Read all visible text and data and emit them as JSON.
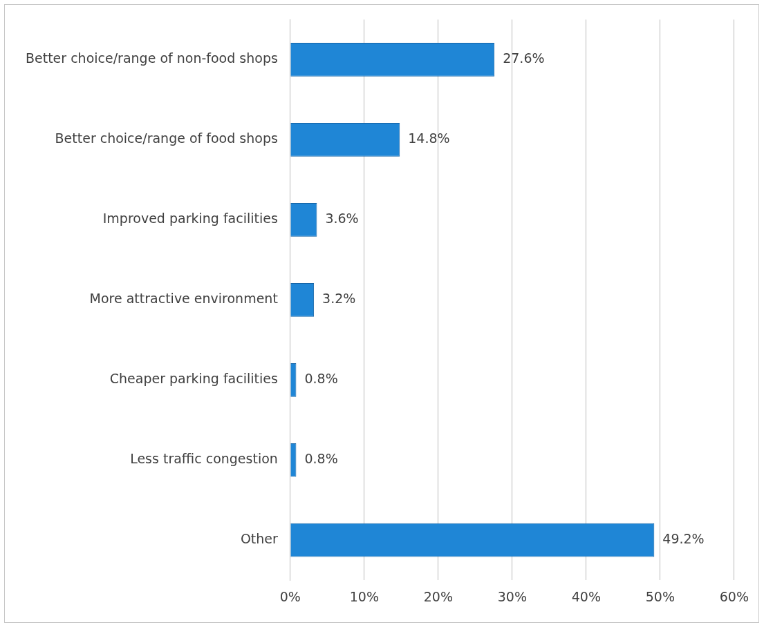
{
  "chart_data": {
    "type": "bar",
    "orientation": "horizontal",
    "categories": [
      "Better choice/range of non-food shops",
      "Better choice/range of food shops",
      "Improved parking facilities",
      "More attractive environment",
      "Cheaper parking facilities",
      "Less traffic congestion",
      "Other"
    ],
    "values": [
      27.6,
      14.8,
      3.6,
      3.2,
      0.8,
      0.8,
      49.2
    ],
    "color": "#1f86d6",
    "value_labels": [
      "27.6%",
      "14.8%",
      "3.6%",
      "3.2%",
      "0.8%",
      "0.8%",
      "49.2%"
    ],
    "xlim": [
      0,
      60
    ],
    "xticks": [
      {
        "value": 0,
        "label": "0%"
      },
      {
        "value": 10,
        "label": "10%"
      },
      {
        "value": 20,
        "label": "20%"
      },
      {
        "value": 30,
        "label": "30%"
      },
      {
        "value": 40,
        "label": "40%"
      },
      {
        "value": 50,
        "label": "50%"
      },
      {
        "value": 60,
        "label": "60%"
      }
    ],
    "grid": "x"
  }
}
